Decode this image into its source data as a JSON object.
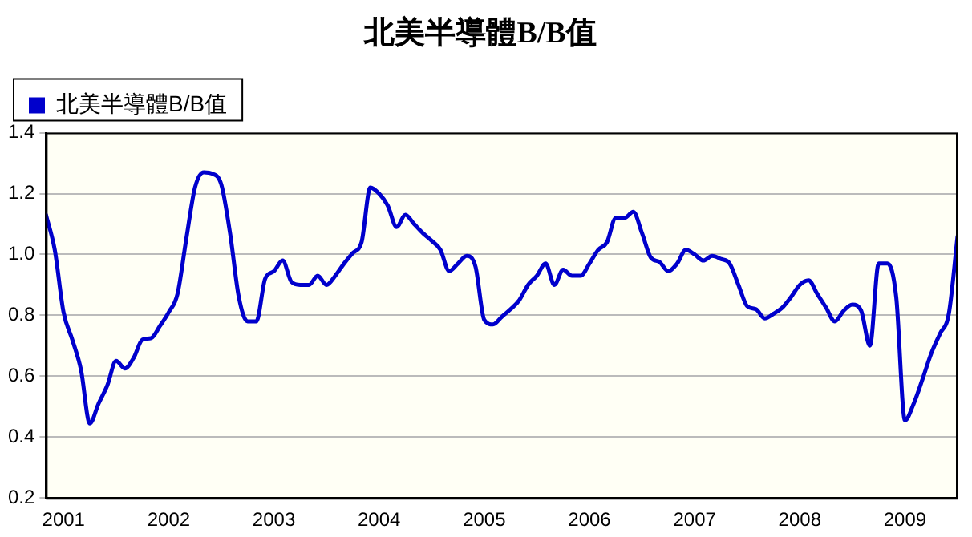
{
  "chart_data": {
    "type": "line",
    "title": "北美半導體B/B值",
    "legend": "top left",
    "grid": "y",
    "marker": "none",
    "line_style": "solid",
    "xlim": [
      "2000-11",
      "2009-07"
    ],
    "xticks": [
      "2001",
      "2002",
      "2003",
      "2004",
      "2005",
      "2006",
      "2007",
      "2008",
      "2009"
    ],
    "ylim": [
      0.2,
      1.4
    ],
    "yticks": [
      {
        "value": 0.2,
        "label": "0.2"
      },
      {
        "value": 0.4,
        "label": "0.4"
      },
      {
        "value": 0.6,
        "label": "0.6"
      },
      {
        "value": 0.8,
        "label": "0.8"
      },
      {
        "value": 1,
        "label": "1.0"
      },
      {
        "value": 1.2,
        "label": "1.2"
      },
      {
        "value": 1.4,
        "label": "1.4"
      }
    ],
    "x": [
      "2000-11",
      "2000-12",
      "2001-01",
      "2001-02",
      "2001-03",
      "2001-04",
      "2001-05",
      "2001-06",
      "2001-07",
      "2001-08",
      "2001-09",
      "2001-10",
      "2001-11",
      "2001-12",
      "2002-01",
      "2002-02",
      "2002-03",
      "2002-04",
      "2002-05",
      "2002-06",
      "2002-07",
      "2002-08",
      "2002-09",
      "2002-10",
      "2002-11",
      "2002-12",
      "2003-01",
      "2003-02",
      "2003-03",
      "2003-04",
      "2003-05",
      "2003-06",
      "2003-07",
      "2003-08",
      "2003-09",
      "2003-10",
      "2003-11",
      "2003-12",
      "2004-01",
      "2004-02",
      "2004-03",
      "2004-04",
      "2004-05",
      "2004-06",
      "2004-07",
      "2004-08",
      "2004-09",
      "2004-10",
      "2004-11",
      "2004-12",
      "2005-01",
      "2005-02",
      "2005-03",
      "2005-04",
      "2005-05",
      "2005-06",
      "2005-07",
      "2005-08",
      "2005-09",
      "2005-10",
      "2005-11",
      "2005-12",
      "2006-01",
      "2006-02",
      "2006-03",
      "2006-04",
      "2006-05",
      "2006-06",
      "2006-07",
      "2006-08",
      "2006-09",
      "2006-10",
      "2006-11",
      "2006-12",
      "2007-01",
      "2007-02",
      "2007-03",
      "2007-04",
      "2007-05",
      "2007-06",
      "2007-07",
      "2007-08",
      "2007-09",
      "2007-10",
      "2007-11",
      "2007-12",
      "2008-01",
      "2008-02",
      "2008-03",
      "2008-04",
      "2008-05",
      "2008-06",
      "2008-07",
      "2008-08",
      "2008-09",
      "2008-10",
      "2008-11",
      "2008-12",
      "2009-01",
      "2009-02",
      "2009-03",
      "2009-04",
      "2009-05",
      "2009-06",
      "2009-07"
    ],
    "series": [
      {
        "name": "北美半導體B/B值",
        "color": "#0000cc",
        "values": [
          1.13,
          1.015,
          0.81,
          0.72,
          0.62,
          0.445,
          0.51,
          0.57,
          0.65,
          0.625,
          0.66,
          0.72,
          0.725,
          0.765,
          0.81,
          0.87,
          1.05,
          1.22,
          1.27,
          1.265,
          1.23,
          1.07,
          0.86,
          0.78,
          0.78,
          0.92,
          0.945,
          0.98,
          0.91,
          0.9,
          0.9,
          0.93,
          0.9,
          0.93,
          0.97,
          1.005,
          1.04,
          1.22,
          1.2,
          1.16,
          1.09,
          1.13,
          1.1,
          1.07,
          1.045,
          1.015,
          0.945,
          0.97,
          0.995,
          0.96,
          0.785,
          0.77,
          0.795,
          0.82,
          0.85,
          0.9,
          0.93,
          0.97,
          0.9,
          0.95,
          0.93,
          0.93,
          0.97,
          1.015,
          1.04,
          1.12,
          1.12,
          1.14,
          1.07,
          0.99,
          0.975,
          0.945,
          0.97,
          1.015,
          1.0,
          0.98,
          0.995,
          0.985,
          0.97,
          0.9,
          0.83,
          0.82,
          0.79,
          0.805,
          0.825,
          0.86,
          0.9,
          0.915,
          0.87,
          0.825,
          0.78,
          0.815,
          0.835,
          0.815,
          0.7,
          0.97,
          0.97,
          0.86,
          0.455,
          0.51,
          0.59,
          0.675,
          0.74,
          0.805,
          1.06
        ]
      }
    ]
  }
}
